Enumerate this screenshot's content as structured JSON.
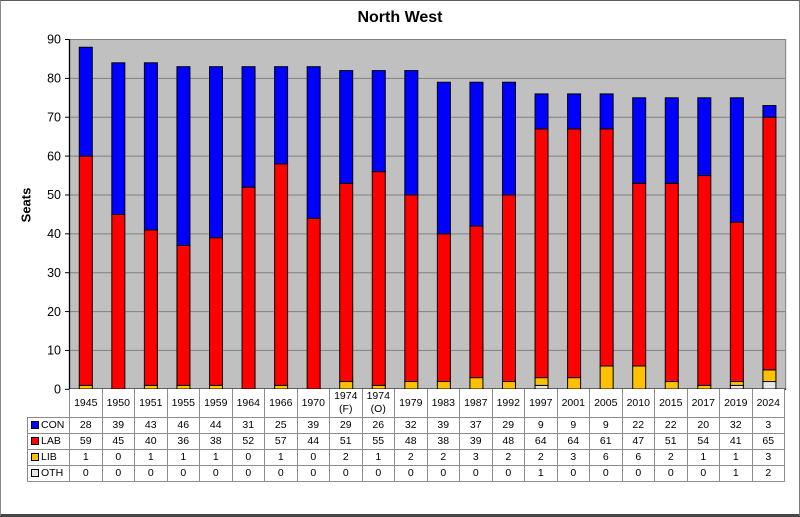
{
  "title": "North West",
  "chart_data": {
    "type": "bar",
    "stacked": true,
    "title": "North West",
    "xlabel": "",
    "ylabel": "Seats",
    "ylim": [
      0,
      90
    ],
    "ytick_step": 10,
    "yticks": [
      0,
      10,
      20,
      30,
      40,
      50,
      60,
      70,
      80,
      90
    ],
    "grid": true,
    "legend_position": "table-left",
    "plot_background": "#c0c0c0",
    "gridline_color": "#808080",
    "axis_color": "#000000",
    "categories": [
      "1945",
      "1950",
      "1951",
      "1955",
      "1959",
      "1964",
      "1966",
      "1970",
      "1974 (F)",
      "1974 (O)",
      "1979",
      "1983",
      "1987",
      "1992",
      "1997",
      "2001",
      "2005",
      "2010",
      "2015",
      "2017",
      "2019",
      "2024"
    ],
    "series": [
      {
        "name": "CON",
        "color": "#0000ff",
        "values": [
          28,
          39,
          43,
          46,
          44,
          31,
          25,
          39,
          29,
          26,
          32,
          39,
          37,
          29,
          9,
          9,
          9,
          22,
          22,
          20,
          32,
          3
        ]
      },
      {
        "name": "LAB",
        "color": "#ff0000",
        "values": [
          59,
          45,
          40,
          36,
          38,
          52,
          57,
          44,
          51,
          55,
          48,
          38,
          39,
          48,
          64,
          64,
          61,
          47,
          51,
          54,
          41,
          65
        ]
      },
      {
        "name": "LIB",
        "color": "#ffc000",
        "values": [
          1,
          0,
          1,
          1,
          1,
          0,
          1,
          0,
          2,
          1,
          2,
          2,
          3,
          2,
          2,
          3,
          6,
          6,
          2,
          1,
          1,
          3
        ]
      },
      {
        "name": "OTH",
        "color": "#e6e6e6",
        "values": [
          0,
          0,
          0,
          0,
          0,
          0,
          0,
          0,
          0,
          0,
          0,
          0,
          0,
          0,
          1,
          0,
          0,
          0,
          0,
          0,
          1,
          2
        ]
      }
    ],
    "stack_order_bottom_to_top": [
      "OTH",
      "LIB",
      "LAB",
      "CON"
    ]
  }
}
